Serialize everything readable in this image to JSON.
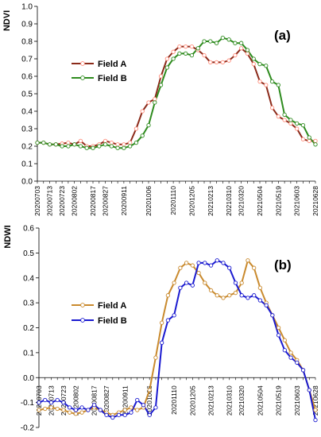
{
  "chart_data": [
    {
      "type": "line",
      "panel_label": "(a)",
      "ylabel": "NDVI",
      "xlabel": "",
      "ylim": [
        0,
        1
      ],
      "yticks": [
        "0.0",
        "0.1",
        "0.2",
        "0.3",
        "0.4",
        "0.5",
        "0.6",
        "0.7",
        "0.8",
        "0.9",
        "1.0"
      ],
      "grid": false,
      "legend_position": "left-middle",
      "x_tick_labels": [
        "20200703",
        "20200713",
        "20200723",
        "20200802",
        "20200817",
        "20200827",
        "20200911",
        "20201006",
        "20201110",
        "20201205",
        "20210213",
        "20210310",
        "20210320",
        "20210504",
        "20210519",
        "20210603",
        "20210628"
      ],
      "x_tick_index": [
        0,
        2,
        4,
        6,
        9,
        11,
        14,
        18,
        22,
        25,
        28,
        31,
        33,
        36,
        39,
        42,
        45
      ],
      "x_count": 46,
      "series": [
        {
          "name": "Field A",
          "line_color": "#8b2a1a",
          "marker_edge": "#ff8c7a",
          "values": [
            0.22,
            0.22,
            0.21,
            0.21,
            0.215,
            0.22,
            0.21,
            0.23,
            0.2,
            0.2,
            0.21,
            0.23,
            0.22,
            0.21,
            0.21,
            0.22,
            0.3,
            0.4,
            0.45,
            0.47,
            0.6,
            0.7,
            0.74,
            0.77,
            0.77,
            0.77,
            0.75,
            0.72,
            0.68,
            0.68,
            0.68,
            0.69,
            0.72,
            0.76,
            0.73,
            0.67,
            0.57,
            0.55,
            0.42,
            0.37,
            0.35,
            0.33,
            0.3,
            0.24,
            0.23,
            0.23
          ]
        },
        {
          "name": "Field B",
          "line_color": "#2e8b1e",
          "marker_edge": "#2e8b1e",
          "values": [
            0.22,
            0.22,
            0.21,
            0.21,
            0.2,
            0.2,
            0.21,
            0.2,
            0.19,
            0.19,
            0.2,
            0.21,
            0.2,
            0.19,
            0.19,
            0.2,
            0.22,
            0.26,
            0.32,
            0.45,
            0.55,
            0.65,
            0.7,
            0.73,
            0.73,
            0.72,
            0.76,
            0.8,
            0.8,
            0.79,
            0.82,
            0.81,
            0.79,
            0.79,
            0.75,
            0.7,
            0.67,
            0.66,
            0.57,
            0.55,
            0.38,
            0.35,
            0.33,
            0.32,
            0.25,
            0.21
          ]
        }
      ]
    },
    {
      "type": "line",
      "panel_label": "(b)",
      "ylabel": "NDWI",
      "xlabel": "",
      "ylim": [
        -0.2,
        0.6
      ],
      "yticks": [
        "-0.2",
        "-0.1",
        "0.0",
        "0.1",
        "0.2",
        "0.3",
        "0.4",
        "0.5",
        "0.6"
      ],
      "grid": false,
      "legend_position": "left-middle",
      "x_tick_labels": [
        "20200703",
        "20200713",
        "20200723",
        "20200802",
        "20200817",
        "20200827",
        "20200911",
        "20201006",
        "20201110",
        "20201205",
        "20210213",
        "20210310",
        "20210320",
        "20210504",
        "20210519",
        "20210603",
        "20210628"
      ],
      "x_tick_index": [
        0,
        2,
        4,
        6,
        9,
        11,
        14,
        18,
        22,
        25,
        28,
        31,
        33,
        36,
        39,
        42,
        45
      ],
      "x_count": 46,
      "series": [
        {
          "name": "Field A",
          "line_color": "#c98a2e",
          "marker_edge": "#c98a2e",
          "values": [
            -0.13,
            -0.125,
            -0.12,
            -0.125,
            -0.13,
            -0.14,
            -0.145,
            -0.14,
            -0.13,
            -0.12,
            -0.13,
            -0.14,
            -0.15,
            -0.14,
            -0.13,
            -0.12,
            -0.13,
            -0.12,
            -0.05,
            0.08,
            0.22,
            0.33,
            0.38,
            0.44,
            0.46,
            0.45,
            0.42,
            0.38,
            0.35,
            0.33,
            0.32,
            0.33,
            0.34,
            0.38,
            0.47,
            0.44,
            0.36,
            0.3,
            0.25,
            0.2,
            0.15,
            0.1,
            0.07,
            0.03,
            -0.05,
            -0.13
          ]
        },
        {
          "name": "Field B",
          "line_color": "#1a1ad0",
          "marker_edge": "#1a1ad0",
          "values": [
            -0.1,
            -0.09,
            -0.1,
            -0.09,
            -0.1,
            -0.12,
            -0.13,
            -0.12,
            -0.13,
            -0.11,
            -0.13,
            -0.15,
            -0.16,
            -0.15,
            -0.15,
            -0.14,
            -0.09,
            -0.11,
            -0.15,
            -0.12,
            0.14,
            0.23,
            0.25,
            0.36,
            0.38,
            0.37,
            0.46,
            0.46,
            0.45,
            0.47,
            0.46,
            0.44,
            0.38,
            0.33,
            0.32,
            0.33,
            0.31,
            0.29,
            0.25,
            0.17,
            0.11,
            0.08,
            0.06,
            0.03,
            -0.05,
            -0.17
          ]
        }
      ]
    }
  ]
}
